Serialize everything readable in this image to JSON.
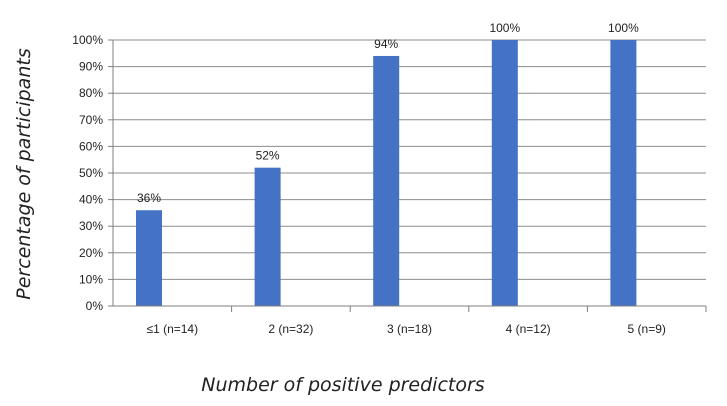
{
  "chart_data": {
    "type": "bar",
    "categories": [
      "≤1 (n=14)",
      "2 (n=32)",
      "3 (n=18)",
      "4 (n=12)",
      "5 (n=9)"
    ],
    "values": [
      36,
      52,
      94,
      100,
      100
    ],
    "data_labels": [
      "36%",
      "52%",
      "94%",
      "100%",
      "100%"
    ],
    "y_ticks": [
      "0%",
      "10%",
      "20%",
      "30%",
      "40%",
      "50%",
      "60%",
      "70%",
      "80%",
      "90%",
      "100%"
    ],
    "ylim": [
      0,
      100
    ],
    "xlabel": "Number of positive predictors",
    "ylabel": "Percentage of participants",
    "grid": true,
    "legend": "none",
    "bar_color": "#4472c4"
  }
}
